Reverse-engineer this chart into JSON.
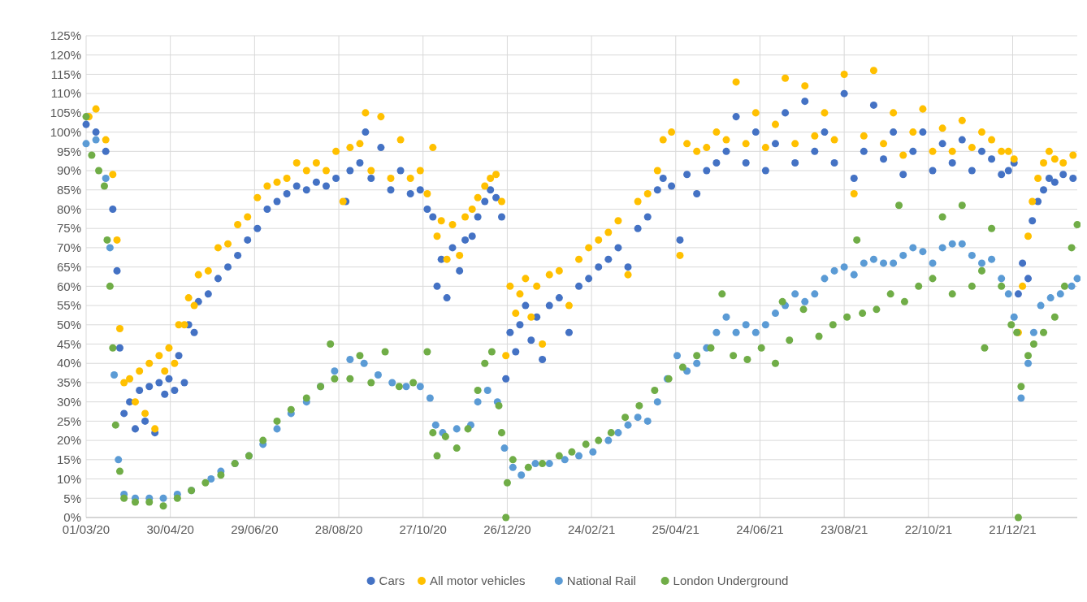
{
  "chart_data": {
    "type": "scatter",
    "xlim": [
      "2020-03-01",
      "2022-02-05"
    ],
    "xticks": [
      {
        "value": "2020-03-01",
        "label": "01/03/20"
      },
      {
        "value": "2020-04-30",
        "label": "30/04/20"
      },
      {
        "value": "2020-06-29",
        "label": "29/06/20"
      },
      {
        "value": "2020-08-28",
        "label": "28/08/20"
      },
      {
        "value": "2020-10-27",
        "label": "27/10/20"
      },
      {
        "value": "2020-12-26",
        "label": "26/12/20"
      },
      {
        "value": "2021-02-24",
        "label": "24/02/21"
      },
      {
        "value": "2021-04-25",
        "label": "25/04/21"
      },
      {
        "value": "2021-06-24",
        "label": "24/06/21"
      },
      {
        "value": "2021-08-23",
        "label": "23/08/21"
      },
      {
        "value": "2021-10-22",
        "label": "22/10/21"
      },
      {
        "value": "2021-12-21",
        "label": "21/12/21"
      }
    ],
    "ylim": [
      0,
      125
    ],
    "yticks": [
      {
        "value": 0,
        "label": "0%"
      },
      {
        "value": 5,
        "label": "5%"
      },
      {
        "value": 10,
        "label": "10%"
      },
      {
        "value": 15,
        "label": "15%"
      },
      {
        "value": 20,
        "label": "20%"
      },
      {
        "value": 25,
        "label": "25%"
      },
      {
        "value": 30,
        "label": "30%"
      },
      {
        "value": 35,
        "label": "35%"
      },
      {
        "value": 40,
        "label": "40%"
      },
      {
        "value": 45,
        "label": "45%"
      },
      {
        "value": 50,
        "label": "50%"
      },
      {
        "value": 55,
        "label": "55%"
      },
      {
        "value": 60,
        "label": "60%"
      },
      {
        "value": 65,
        "label": "65%"
      },
      {
        "value": 70,
        "label": "70%"
      },
      {
        "value": 75,
        "label": "75%"
      },
      {
        "value": 80,
        "label": "80%"
      },
      {
        "value": 85,
        "label": "85%"
      },
      {
        "value": 90,
        "label": "90%"
      },
      {
        "value": 95,
        "label": "95%"
      },
      {
        "value": 100,
        "label": "100%"
      },
      {
        "value": 105,
        "label": "105%"
      },
      {
        "value": 110,
        "label": "110%"
      },
      {
        "value": 115,
        "label": "115%"
      },
      {
        "value": 120,
        "label": "120%"
      },
      {
        "value": 125,
        "label": "125%"
      }
    ],
    "grid": true,
    "legend": "bottom",
    "marker": "circle",
    "series": [
      {
        "name": "Cars",
        "color": "#4472c4",
        "x": [
          "2020-03-01",
          "2020-03-08",
          "2020-03-15",
          "2020-03-20",
          "2020-03-23",
          "2020-03-25",
          "2020-03-28",
          "2020-04-01",
          "2020-04-05",
          "2020-04-08",
          "2020-04-12",
          "2020-04-15",
          "2020-04-19",
          "2020-04-22",
          "2020-04-26",
          "2020-04-29",
          "2020-05-03",
          "2020-05-06",
          "2020-05-10",
          "2020-05-13",
          "2020-05-17",
          "2020-05-20",
          "2020-05-27",
          "2020-06-03",
          "2020-06-10",
          "2020-06-17",
          "2020-06-24",
          "2020-07-01",
          "2020-07-08",
          "2020-07-15",
          "2020-07-22",
          "2020-07-29",
          "2020-08-05",
          "2020-08-12",
          "2020-08-19",
          "2020-08-26",
          "2020-09-02",
          "2020-09-05",
          "2020-09-12",
          "2020-09-16",
          "2020-09-20",
          "2020-09-27",
          "2020-10-04",
          "2020-10-11",
          "2020-10-18",
          "2020-10-25",
          "2020-10-30",
          "2020-11-03",
          "2020-11-06",
          "2020-11-09",
          "2020-11-13",
          "2020-11-17",
          "2020-11-22",
          "2020-11-26",
          "2020-12-01",
          "2020-12-05",
          "2020-12-10",
          "2020-12-14",
          "2020-12-18",
          "2020-12-22",
          "2020-12-25",
          "2020-12-28",
          "2021-01-01",
          "2021-01-04",
          "2021-01-08",
          "2021-01-12",
          "2021-01-16",
          "2021-01-20",
          "2021-01-25",
          "2021-02-01",
          "2021-02-08",
          "2021-02-15",
          "2021-02-22",
          "2021-03-01",
          "2021-03-08",
          "2021-03-15",
          "2021-03-22",
          "2021-03-29",
          "2021-04-05",
          "2021-04-12",
          "2021-04-16",
          "2021-04-22",
          "2021-04-28",
          "2021-05-03",
          "2021-05-10",
          "2021-05-17",
          "2021-05-24",
          "2021-05-31",
          "2021-06-07",
          "2021-06-14",
          "2021-06-21",
          "2021-06-28",
          "2021-07-05",
          "2021-07-12",
          "2021-07-19",
          "2021-07-26",
          "2021-08-02",
          "2021-08-09",
          "2021-08-16",
          "2021-08-23",
          "2021-08-30",
          "2021-09-06",
          "2021-09-13",
          "2021-09-20",
          "2021-09-27",
          "2021-10-04",
          "2021-10-11",
          "2021-10-18",
          "2021-10-25",
          "2021-11-01",
          "2021-11-08",
          "2021-11-15",
          "2021-11-22",
          "2021-11-29",
          "2021-12-06",
          "2021-12-13",
          "2021-12-18",
          "2021-12-22",
          "2021-12-25",
          "2021-12-28",
          "2022-01-01",
          "2022-01-04",
          "2022-01-08",
          "2022-01-12",
          "2022-01-16",
          "2022-01-20",
          "2022-01-26",
          "2022-02-02"
        ],
        "values": [
          102,
          100,
          95,
          80,
          64,
          44,
          27,
          30,
          23,
          33,
          25,
          34,
          22,
          35,
          32,
          36,
          33,
          42,
          35,
          50,
          48,
          56,
          58,
          62,
          65,
          68,
          72,
          75,
          80,
          82,
          84,
          86,
          85,
          87,
          86,
          88,
          82,
          90,
          92,
          100,
          88,
          96,
          85,
          90,
          84,
          85,
          80,
          78,
          60,
          67,
          57,
          70,
          64,
          72,
          73,
          78,
          82,
          85,
          83,
          78,
          36,
          48,
          43,
          50,
          55,
          46,
          52,
          41,
          55,
          57,
          48,
          60,
          62,
          65,
          67,
          70,
          65,
          75,
          78,
          85,
          88,
          86,
          72,
          89,
          84,
          90,
          92,
          95,
          104,
          92,
          100,
          90,
          97,
          105,
          92,
          108,
          95,
          100,
          92,
          110,
          88,
          95,
          107,
          93,
          100,
          89,
          95,
          100,
          90,
          97,
          92,
          98,
          90,
          95,
          93,
          89,
          90,
          92,
          58,
          66,
          62,
          77,
          82,
          85,
          88,
          87,
          89,
          88
        ]
      },
      {
        "name": "All motor vehicles",
        "color": "#ffc000",
        "x": [
          "2020-03-03",
          "2020-03-08",
          "2020-03-15",
          "2020-03-20",
          "2020-03-23",
          "2020-03-25",
          "2020-03-28",
          "2020-04-01",
          "2020-04-05",
          "2020-04-08",
          "2020-04-12",
          "2020-04-15",
          "2020-04-19",
          "2020-04-22",
          "2020-04-26",
          "2020-04-29",
          "2020-05-03",
          "2020-05-06",
          "2020-05-10",
          "2020-05-13",
          "2020-05-17",
          "2020-05-20",
          "2020-05-27",
          "2020-06-03",
          "2020-06-10",
          "2020-06-17",
          "2020-06-24",
          "2020-07-01",
          "2020-07-08",
          "2020-07-15",
          "2020-07-22",
          "2020-07-29",
          "2020-08-05",
          "2020-08-12",
          "2020-08-19",
          "2020-08-26",
          "2020-08-31",
          "2020-09-05",
          "2020-09-12",
          "2020-09-16",
          "2020-09-20",
          "2020-09-27",
          "2020-10-04",
          "2020-10-11",
          "2020-10-18",
          "2020-10-25",
          "2020-10-30",
          "2020-11-03",
          "2020-11-06",
          "2020-11-09",
          "2020-11-13",
          "2020-11-17",
          "2020-11-22",
          "2020-11-26",
          "2020-12-01",
          "2020-12-05",
          "2020-12-10",
          "2020-12-14",
          "2020-12-18",
          "2020-12-22",
          "2020-12-25",
          "2020-12-28",
          "2021-01-01",
          "2021-01-04",
          "2021-01-08",
          "2021-01-12",
          "2021-01-16",
          "2021-01-20",
          "2021-01-25",
          "2021-02-01",
          "2021-02-08",
          "2021-02-15",
          "2021-02-22",
          "2021-03-01",
          "2021-03-08",
          "2021-03-15",
          "2021-03-22",
          "2021-03-29",
          "2021-04-05",
          "2021-04-12",
          "2021-04-16",
          "2021-04-22",
          "2021-04-28",
          "2021-05-03",
          "2021-05-10",
          "2021-05-17",
          "2021-05-24",
          "2021-05-31",
          "2021-06-07",
          "2021-06-14",
          "2021-06-21",
          "2021-06-28",
          "2021-07-05",
          "2021-07-12",
          "2021-07-19",
          "2021-07-26",
          "2021-08-02",
          "2021-08-09",
          "2021-08-16",
          "2021-08-23",
          "2021-08-30",
          "2021-09-06",
          "2021-09-13",
          "2021-09-20",
          "2021-09-27",
          "2021-10-04",
          "2021-10-11",
          "2021-10-18",
          "2021-10-25",
          "2021-11-01",
          "2021-11-08",
          "2021-11-15",
          "2021-11-22",
          "2021-11-29",
          "2021-12-06",
          "2021-12-13",
          "2021-12-18",
          "2021-12-22",
          "2021-12-25",
          "2021-12-28",
          "2022-01-01",
          "2022-01-04",
          "2022-01-08",
          "2022-01-12",
          "2022-01-16",
          "2022-01-20",
          "2022-01-26",
          "2022-02-02"
        ],
        "values": [
          104,
          106,
          98,
          89,
          72,
          49,
          35,
          36,
          30,
          38,
          27,
          40,
          23,
          42,
          38,
          44,
          40,
          50,
          50,
          57,
          55,
          63,
          64,
          70,
          71,
          76,
          78,
          83,
          86,
          87,
          88,
          92,
          90,
          92,
          90,
          95,
          82,
          96,
          97,
          105,
          90,
          104,
          88,
          98,
          88,
          90,
          84,
          96,
          73,
          77,
          67,
          76,
          68,
          78,
          80,
          83,
          86,
          88,
          89,
          82,
          42,
          60,
          53,
          58,
          62,
          52,
          60,
          45,
          63,
          64,
          55,
          67,
          70,
          72,
          74,
          77,
          63,
          82,
          84,
          90,
          98,
          100,
          68,
          97,
          95,
          96,
          100,
          98,
          113,
          97,
          105,
          96,
          102,
          114,
          97,
          112,
          99,
          105,
          98,
          115,
          84,
          99,
          116,
          97,
          105,
          94,
          100,
          106,
          95,
          101,
          95,
          103,
          96,
          100,
          98,
          95,
          95,
          93,
          48,
          60,
          73,
          82,
          88,
          92,
          95,
          93,
          92,
          94
        ]
      },
      {
        "name": "National Rail",
        "color": "#5b9bd5",
        "x": [
          "2020-03-01",
          "2020-03-08",
          "2020-03-15",
          "2020-03-18",
          "2020-03-21",
          "2020-03-24",
          "2020-03-28",
          "2020-04-05",
          "2020-04-15",
          "2020-04-25",
          "2020-05-05",
          "2020-05-15",
          "2020-05-29",
          "2020-06-05",
          "2020-06-15",
          "2020-06-25",
          "2020-07-05",
          "2020-07-15",
          "2020-07-25",
          "2020-08-05",
          "2020-08-15",
          "2020-08-25",
          "2020-09-05",
          "2020-09-15",
          "2020-09-25",
          "2020-10-05",
          "2020-10-15",
          "2020-10-25",
          "2020-11-01",
          "2020-11-05",
          "2020-11-10",
          "2020-11-20",
          "2020-11-30",
          "2020-12-05",
          "2020-12-12",
          "2020-12-19",
          "2020-12-24",
          "2020-12-30",
          "2021-01-05",
          "2021-01-15",
          "2021-01-25",
          "2021-02-05",
          "2021-02-15",
          "2021-02-25",
          "2021-03-08",
          "2021-03-15",
          "2021-03-22",
          "2021-03-29",
          "2021-04-05",
          "2021-04-12",
          "2021-04-19",
          "2021-04-26",
          "2021-05-03",
          "2021-05-10",
          "2021-05-17",
          "2021-05-24",
          "2021-05-31",
          "2021-06-07",
          "2021-06-14",
          "2021-06-21",
          "2021-06-28",
          "2021-07-05",
          "2021-07-12",
          "2021-07-19",
          "2021-07-26",
          "2021-08-02",
          "2021-08-09",
          "2021-08-16",
          "2021-08-23",
          "2021-08-30",
          "2021-09-06",
          "2021-09-13",
          "2021-09-20",
          "2021-09-27",
          "2021-10-04",
          "2021-10-11",
          "2021-10-18",
          "2021-10-25",
          "2021-11-01",
          "2021-11-08",
          "2021-11-15",
          "2021-11-22",
          "2021-11-29",
          "2021-12-06",
          "2021-12-13",
          "2021-12-18",
          "2021-12-22",
          "2021-12-27",
          "2022-01-01",
          "2022-01-05",
          "2022-01-10",
          "2022-01-17",
          "2022-01-24",
          "2022-02-01",
          "2022-02-05"
        ],
        "values": [
          97,
          98,
          88,
          70,
          37,
          15,
          6,
          5,
          5,
          5,
          6,
          7,
          10,
          12,
          14,
          16,
          19,
          23,
          27,
          30,
          34,
          38,
          41,
          40,
          37,
          35,
          34,
          34,
          31,
          24,
          22,
          23,
          24,
          30,
          33,
          30,
          18,
          13,
          11,
          14,
          14,
          15,
          16,
          17,
          20,
          22,
          24,
          26,
          25,
          30,
          36,
          42,
          38,
          40,
          44,
          48,
          52,
          48,
          50,
          48,
          50,
          53,
          55,
          58,
          56,
          58,
          62,
          64,
          65,
          63,
          66,
          67,
          66,
          66,
          68,
          70,
          69,
          66,
          70,
          71,
          71,
          68,
          66,
          67,
          62,
          58,
          52,
          31,
          40,
          48,
          55,
          57,
          58,
          60,
          62
        ]
      },
      {
        "name": "London Underground",
        "color": "#70ad47",
        "x": [
          "2020-03-01",
          "2020-03-05",
          "2020-03-10",
          "2020-03-14",
          "2020-03-16",
          "2020-03-18",
          "2020-03-20",
          "2020-03-22",
          "2020-03-25",
          "2020-03-28",
          "2020-04-05",
          "2020-04-15",
          "2020-04-25",
          "2020-05-05",
          "2020-05-15",
          "2020-05-25",
          "2020-06-05",
          "2020-06-15",
          "2020-06-25",
          "2020-07-05",
          "2020-07-15",
          "2020-07-25",
          "2020-08-05",
          "2020-08-15",
          "2020-08-22",
          "2020-08-25",
          "2020-09-05",
          "2020-09-12",
          "2020-09-20",
          "2020-09-30",
          "2020-10-10",
          "2020-10-20",
          "2020-10-30",
          "2020-11-03",
          "2020-11-06",
          "2020-11-12",
          "2020-11-20",
          "2020-11-28",
          "2020-12-05",
          "2020-12-10",
          "2020-12-15",
          "2020-12-20",
          "2020-12-22",
          "2020-12-25",
          "2020-12-26",
          "2020-12-30",
          "2021-01-10",
          "2021-01-20",
          "2021-02-01",
          "2021-02-10",
          "2021-02-20",
          "2021-03-01",
          "2021-03-10",
          "2021-03-20",
          "2021-03-30",
          "2021-04-10",
          "2021-04-20",
          "2021-04-30",
          "2021-05-10",
          "2021-05-20",
          "2021-05-28",
          "2021-06-05",
          "2021-06-15",
          "2021-06-25",
          "2021-07-05",
          "2021-07-10",
          "2021-07-15",
          "2021-07-25",
          "2021-08-05",
          "2021-08-15",
          "2021-08-25",
          "2021-09-01",
          "2021-09-05",
          "2021-09-15",
          "2021-09-25",
          "2021-10-01",
          "2021-10-05",
          "2021-10-15",
          "2021-10-25",
          "2021-11-01",
          "2021-11-08",
          "2021-11-15",
          "2021-11-22",
          "2021-11-29",
          "2021-12-01",
          "2021-12-06",
          "2021-12-13",
          "2021-12-20",
          "2021-12-24",
          "2021-12-25",
          "2021-12-27",
          "2022-01-01",
          "2022-01-05",
          "2022-01-12",
          "2022-01-20",
          "2022-01-27",
          "2022-02-01",
          "2022-02-05"
        ],
        "values": [
          104,
          94,
          90,
          86,
          72,
          60,
          44,
          24,
          12,
          5,
          4,
          4,
          3,
          5,
          7,
          9,
          11,
          14,
          16,
          20,
          25,
          28,
          31,
          34,
          45,
          36,
          36,
          42,
          35,
          43,
          34,
          35,
          43,
          22,
          16,
          21,
          18,
          23,
          33,
          40,
          43,
          29,
          22,
          0,
          9,
          15,
          13,
          14,
          16,
          17,
          19,
          20,
          22,
          26,
          29,
          33,
          36,
          39,
          42,
          44,
          58,
          42,
          41,
          44,
          40,
          56,
          46,
          54,
          47,
          50,
          52,
          72,
          53,
          54,
          58,
          81,
          56,
          60,
          62,
          78,
          58,
          81,
          60,
          64,
          44,
          75,
          60,
          50,
          48,
          0,
          34,
          42,
          45,
          48,
          52,
          60,
          70,
          76
        ]
      }
    ]
  }
}
